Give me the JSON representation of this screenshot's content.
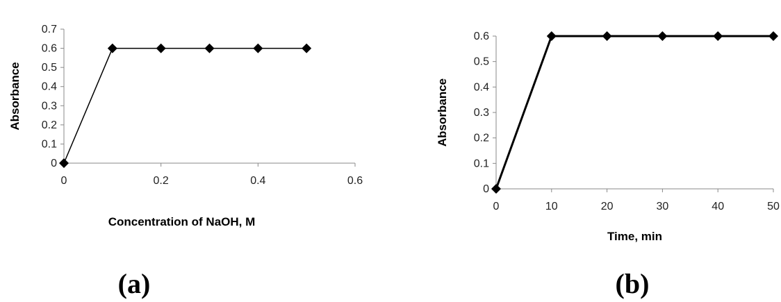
{
  "chart_data": [
    {
      "type": "line",
      "panel_label": "(a)",
      "xlabel": "Concentration of NaOH, M",
      "ylabel": "Absorbance",
      "xlim": [
        0,
        0.6
      ],
      "ylim": [
        0,
        0.7
      ],
      "x_ticks": [
        "0",
        "0.2",
        "0.4",
        "0.6"
      ],
      "y_ticks": [
        "0",
        "0.1",
        "0.2",
        "0.3",
        "0.4",
        "0.5",
        "0.6",
        "0.7"
      ],
      "x": [
        0,
        0.1,
        0.2,
        0.3,
        0.4,
        0.5
      ],
      "series": [
        {
          "values": [
            0,
            0.6,
            0.6,
            0.6,
            0.6,
            0.6
          ]
        }
      ],
      "grid": false,
      "marker": "diamond",
      "color": "#000000"
    },
    {
      "type": "line",
      "panel_label": "(b)",
      "xlabel": "Time, min",
      "ylabel": "Absorbance",
      "xlim": [
        0,
        50
      ],
      "ylim": [
        0,
        0.6
      ],
      "x_ticks": [
        "0",
        "10",
        "20",
        "30",
        "40",
        "50"
      ],
      "y_ticks": [
        "0",
        "0.1",
        "0.2",
        "0.3",
        "0.4",
        "0.5",
        "0.6"
      ],
      "x": [
        0,
        10,
        20,
        30,
        40,
        50
      ],
      "series": [
        {
          "values": [
            0,
            0.6,
            0.6,
            0.6,
            0.6,
            0.6
          ]
        }
      ],
      "grid": false,
      "marker": "diamond",
      "color": "#000000"
    }
  ]
}
